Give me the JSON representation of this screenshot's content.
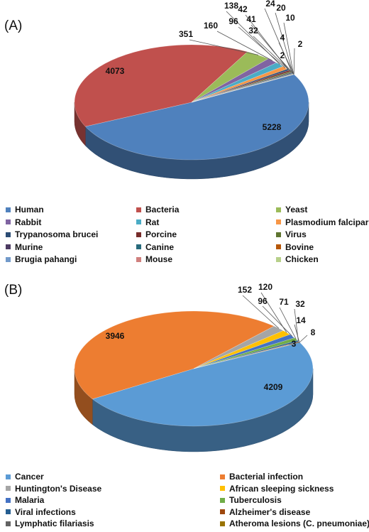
{
  "chart_data": [
    {
      "type": "pie",
      "panel": "(A)",
      "slices": [
        {
          "name": "Human",
          "value": 5228,
          "color": "#4f81bd"
        },
        {
          "name": "Bacteria",
          "value": 4073,
          "color": "#c0504d"
        },
        {
          "name": "Yeast",
          "value": 351,
          "color": "#9bbb59"
        },
        {
          "name": "Rabbit",
          "value": 160,
          "color": "#8064a2"
        },
        {
          "name": "Rat",
          "value": 138,
          "color": "#4bacc6"
        },
        {
          "name": "Plasmodium falciparum",
          "value": 96,
          "color": "#f79646"
        },
        {
          "name": "Trypanosoma brucei",
          "value": 42,
          "color": "#2c4d75"
        },
        {
          "name": "Porcine",
          "value": 41,
          "color": "#772c2a"
        },
        {
          "name": "Virus",
          "value": 32,
          "color": "#5f7530"
        },
        {
          "name": "Murine",
          "value": 24,
          "color": "#4d3b62"
        },
        {
          "name": "Canine",
          "value": 20,
          "color": "#276a7c"
        },
        {
          "name": "Bovine",
          "value": 10,
          "color": "#b65708"
        },
        {
          "name": "Brugia pahangi",
          "value": 4,
          "color": "#729aca"
        },
        {
          "name": "Mouse",
          "value": 2,
          "color": "#d0807e"
        },
        {
          "name": "Chicken",
          "value": 2,
          "color": "#b7d08a"
        }
      ]
    },
    {
      "type": "pie",
      "panel": "(B)",
      "slices": [
        {
          "name": "Cancer",
          "value": 4209,
          "color": "#5b9bd5"
        },
        {
          "name": "Bacterial infection",
          "value": 3946,
          "color": "#ed7d31"
        },
        {
          "name": "Huntington's Disease",
          "value": 152,
          "color": "#a5a5a5"
        },
        {
          "name": "African sleeping sickness",
          "value": 120,
          "color": "#ffc000"
        },
        {
          "name": "Malaria",
          "value": 96,
          "color": "#4472c4"
        },
        {
          "name": "Tuberculosis",
          "value": 71,
          "color": "#70ad47"
        },
        {
          "name": "Viral infections",
          "value": 32,
          "color": "#255e91"
        },
        {
          "name": "Alzheimer's disease",
          "value": 14,
          "color": "#9e480e"
        },
        {
          "name": "Lymphatic filariasis",
          "value": 8,
          "color": "#636363"
        },
        {
          "name": "Atheroma lesions (C. pneumoniae)",
          "value": 3,
          "color": "#997300"
        }
      ]
    }
  ]
}
